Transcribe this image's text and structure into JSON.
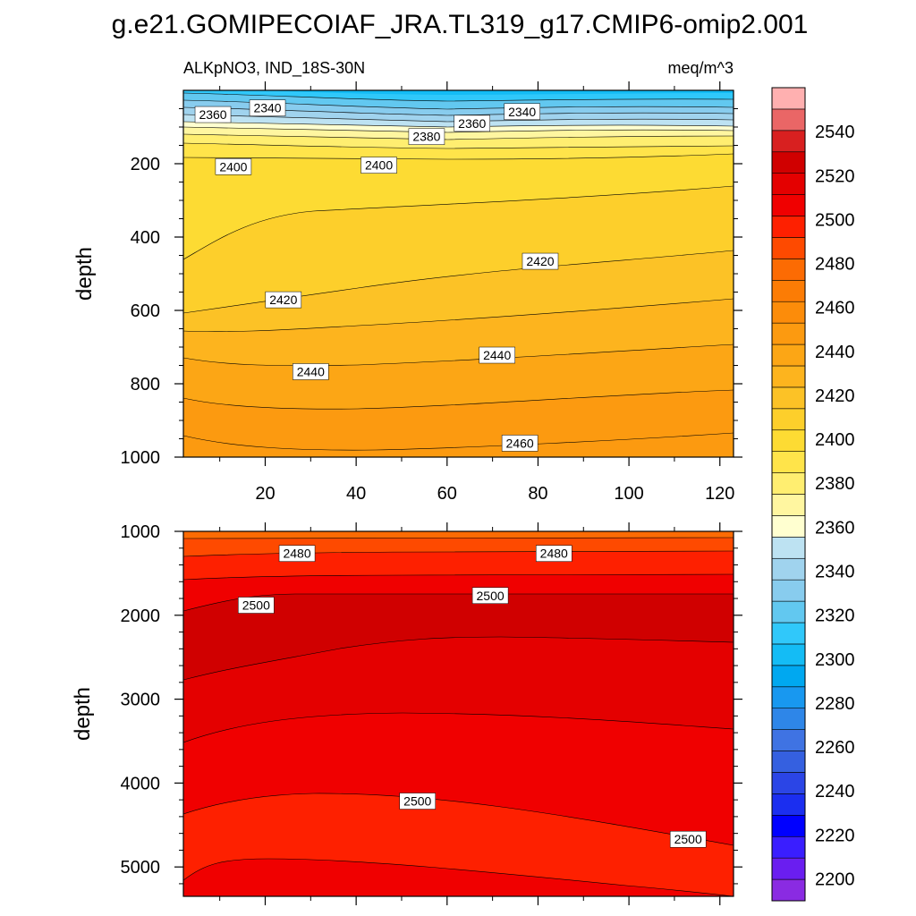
{
  "chart_data": {
    "type": "heatmap",
    "title": "g.e21.GOMIPECOIAF_JRA.TL319_g17.CMIP6-omip2.001",
    "subtitle_left": "ALKpNO3, IND_18S-30N",
    "units": "meq/m^3",
    "ylabel": "depth",
    "xlabel": "",
    "colorbar": {
      "levels": [
        2190,
        2200,
        2210,
        2220,
        2230,
        2240,
        2250,
        2260,
        2270,
        2280,
        2290,
        2300,
        2310,
        2320,
        2330,
        2340,
        2350,
        2360,
        2370,
        2380,
        2390,
        2400,
        2410,
        2420,
        2430,
        2440,
        2450,
        2460,
        2470,
        2480,
        2490,
        2500,
        2510,
        2520,
        2530,
        2540,
        2550,
        2560
      ],
      "colors": [
        "#8A2BE2",
        "#6A1EF0",
        "#3A1EFF",
        "#0000FF",
        "#1B2EF0",
        "#2B45E6",
        "#3560E0",
        "#3F73E3",
        "#2E86E8",
        "#1898F0",
        "#00A8F0",
        "#14BCF5",
        "#30C8FA",
        "#62C8F0",
        "#88CCEE",
        "#A0D3EE",
        "#BDE2F2",
        "#FFFFD0",
        "#FFF6A0",
        "#FFEE70",
        "#FFE44A",
        "#FDDB33",
        "#FDCF2B",
        "#FCC226",
        "#FDB41E",
        "#FCA615",
        "#FC9A10",
        "#FC8C0A",
        "#FC7C05",
        "#FC6B03",
        "#FE4A00",
        "#FE2000",
        "#F00000",
        "#E40000",
        "#D00000",
        "#D82020",
        "#EA6666",
        "#FFB0B0"
      ],
      "tick_labels": [
        "2200",
        "2220",
        "2240",
        "2260",
        "2280",
        "2300",
        "2320",
        "2340",
        "2360",
        "2380",
        "2400",
        "2420",
        "2440",
        "2460",
        "2480",
        "2500",
        "2520",
        "2540"
      ]
    },
    "panels": [
      {
        "name": "upper",
        "ylim": [
          1000,
          0
        ],
        "yticks": [
          "200",
          "400",
          "600",
          "800",
          "1000"
        ],
        "xlim": [
          2,
          123
        ],
        "xticks": [
          "20",
          "40",
          "60",
          "80",
          "100",
          "120"
        ],
        "contour_labels": [
          {
            "text": "2340",
            "x": 20.5,
            "y": 48
          },
          {
            "text": "2360",
            "x": 8.5,
            "y": 66
          },
          {
            "text": "2340",
            "x": 76.5,
            "y": 58
          },
          {
            "text": "2360",
            "x": 65.5,
            "y": 90
          },
          {
            "text": "2380",
            "x": 55.5,
            "y": 126
          },
          {
            "text": "2400",
            "x": 13,
            "y": 208
          },
          {
            "text": "2400",
            "x": 45,
            "y": 204
          },
          {
            "text": "2420",
            "x": 80.5,
            "y": 466
          },
          {
            "text": "2420",
            "x": 24,
            "y": 571
          },
          {
            "text": "2440",
            "x": 30,
            "y": 767
          },
          {
            "text": "2440",
            "x": 71,
            "y": 722
          },
          {
            "text": "2460",
            "x": 76,
            "y": 962
          }
        ]
      },
      {
        "name": "lower",
        "ylim": [
          5350,
          1000
        ],
        "yticks": [
          "1000",
          "2000",
          "3000",
          "4000",
          "5000"
        ],
        "xlim": [
          2,
          123
        ],
        "contour_labels": [
          {
            "text": "2480",
            "x": 27,
            "y": 1263
          },
          {
            "text": "2480",
            "x": 83.5,
            "y": 1263
          },
          {
            "text": "2500",
            "x": 18,
            "y": 1880
          },
          {
            "text": "2500",
            "x": 69.5,
            "y": 1765
          },
          {
            "text": "2500",
            "x": 53.5,
            "y": 4215
          },
          {
            "text": "2500",
            "x": 113,
            "y": 4670
          }
        ]
      }
    ]
  }
}
